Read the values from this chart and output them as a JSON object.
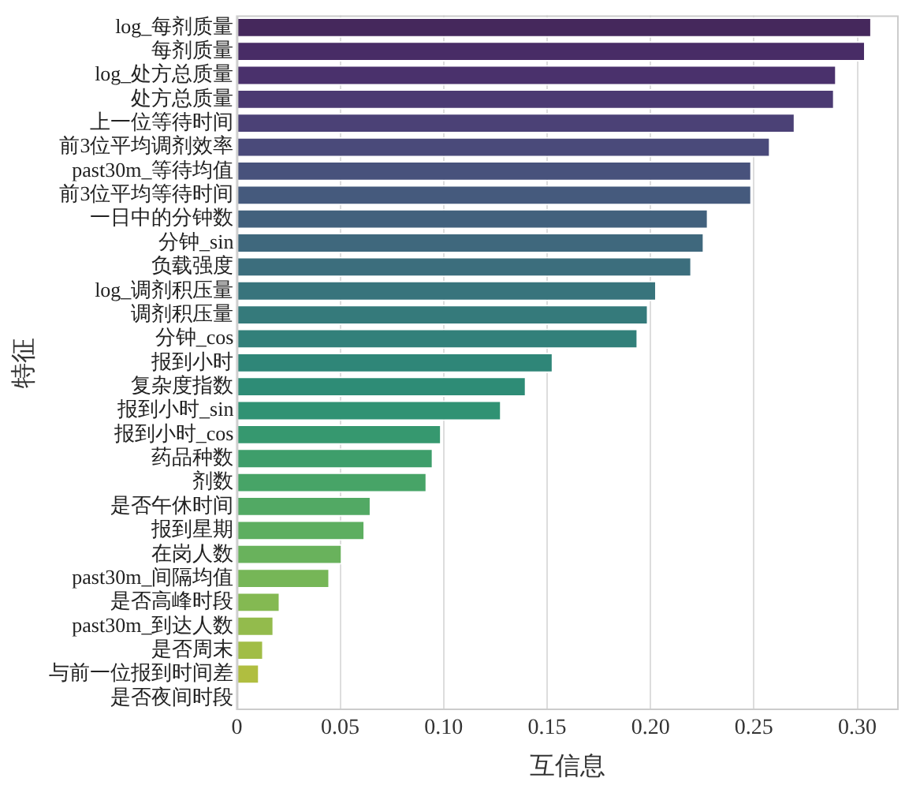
{
  "chart_data": {
    "type": "bar",
    "orientation": "horizontal",
    "xlabel": "互信息",
    "ylabel": "特征",
    "categories": [
      "log_每剂质量",
      "每剂质量",
      "log_处方总质量",
      "处方总质量",
      "上一位等待时间",
      "前3位平均调剂效率",
      "past30m_等待均值",
      "前3位平均等待时间",
      "一日中的分钟数",
      "分钟_sin",
      "负载强度",
      "log_调剂积压量",
      "调剂积压量",
      "分钟_cos",
      "报到小时",
      "复杂度指数",
      "报到小时_sin",
      "报到小时_cos",
      "药品种数",
      "剂数",
      "是否午休时间",
      "报到星期",
      "在岗人数",
      "past30m_间隔均值",
      "是否高峰时段",
      "past30m_到达人数",
      "是否周末",
      "与前一位报到时间差",
      "是否夜间时段"
    ],
    "values": [
      0.307,
      0.304,
      0.29,
      0.289,
      0.27,
      0.258,
      0.249,
      0.249,
      0.228,
      0.226,
      0.22,
      0.203,
      0.199,
      0.194,
      0.153,
      0.14,
      0.128,
      0.099,
      0.095,
      0.092,
      0.065,
      0.062,
      0.051,
      0.045,
      0.021,
      0.018,
      0.013,
      0.011,
      0
    ],
    "colors": [
      "#45285c",
      "#482c66",
      "#4a316c",
      "#4b3a72",
      "#4b4176",
      "#4a4a7a",
      "#48527c",
      "#455a7d",
      "#42617d",
      "#3f687d",
      "#3c6e7d",
      "#38747c",
      "#357a7b",
      "#32807a",
      "#2f8678",
      "#2e8c76",
      "#309273",
      "#36986f",
      "#3e9e6b",
      "#47a467",
      "#52a964",
      "#5dae60",
      "#69b25c",
      "#76b657",
      "#84b952",
      "#93bb4c",
      "#a1bd46",
      "#b0be40",
      "#bcbe3b"
    ],
    "xlim": [
      0,
      0.32
    ],
    "xticks": [
      0,
      0.05,
      {
        "value": 0.1,
        "label": "0.10"
      },
      0.15,
      {
        "value": 0.2,
        "label": "0.20"
      },
      0.25,
      {
        "value": 0.3,
        "label": "0.30"
      }
    ],
    "grid": "x"
  }
}
